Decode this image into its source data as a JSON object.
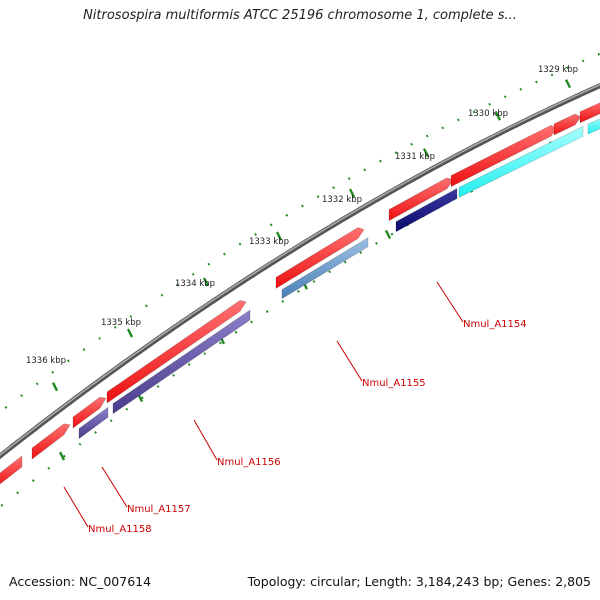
{
  "title": "Nitrosospira multiformis ATCC 25196 chromosome 1, complete s...",
  "footer": {
    "accession": "Accession: NC_007614",
    "summary": "Topology: circular; Length: 3,184,243 bp; Genes: 2,805"
  },
  "ticks": [
    {
      "label": "1329 kbp"
    },
    {
      "label": "1330 kbp"
    },
    {
      "label": "1331 kbp"
    },
    {
      "label": "1332 kbp"
    },
    {
      "label": "1333 kbp"
    },
    {
      "label": "1334 kbp"
    },
    {
      "label": "1335 kbp"
    },
    {
      "label": "1336 kbp"
    }
  ],
  "gene_labels": [
    {
      "name": "Nmul_A1154"
    },
    {
      "name": "Nmul_A1155"
    },
    {
      "name": "Nmul_A1156"
    },
    {
      "name": "Nmul_A1157"
    },
    {
      "name": "Nmul_A1158"
    }
  ],
  "colors": {
    "backbone": "#777777",
    "forward_feature": "#ee1111",
    "cds_cyan": "#22eeee",
    "cds_navy": "#0a0a6e",
    "cds_steelblue": "#4a7fb5",
    "cds_slate": "#4a3c8c",
    "tick_mark": "#1f8a1f",
    "gene_label": "#cc0000",
    "tick_label": "#222222"
  }
}
